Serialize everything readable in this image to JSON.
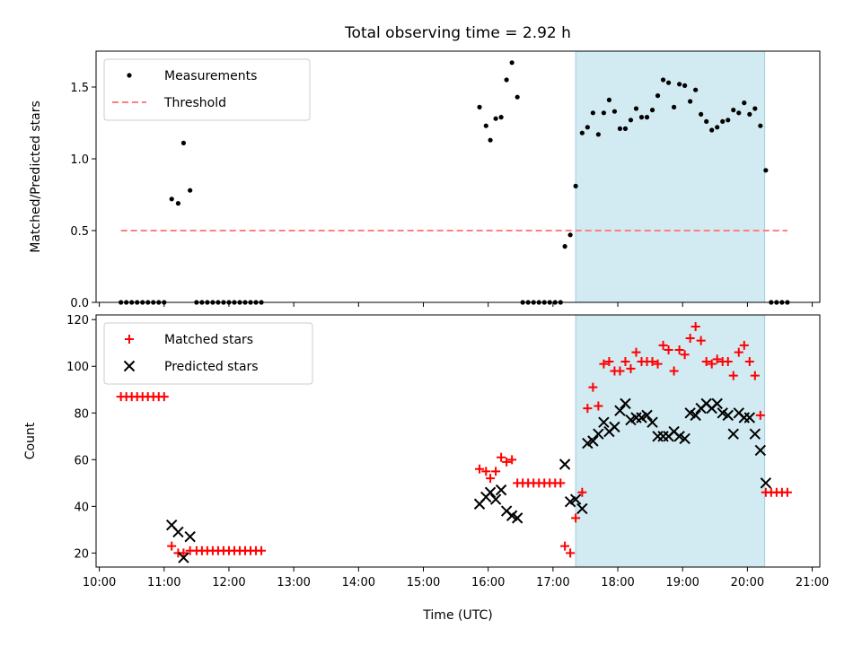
{
  "title": "Total observing time = 2.92 h",
  "chart_data": [
    {
      "type": "scatter",
      "ylabel": "Matched/Predicted stars",
      "xlabel": "",
      "xlim": [
        "09:57",
        "21:07"
      ],
      "ylim": [
        0,
        1.75
      ],
      "yticks": [
        "0.0",
        "0.5",
        "1.0",
        "1.5"
      ],
      "legend": "upper left",
      "highlight_span": {
        "start": "17:21",
        "end": "20:16",
        "color": "#add8e6"
      },
      "series": [
        {
          "name": "Measurements",
          "marker": "dot",
          "color": "#000000",
          "points": [
            [
              "10:20",
              0
            ],
            [
              "10:25",
              0
            ],
            [
              "10:30",
              0
            ],
            [
              "10:35",
              0
            ],
            [
              "10:40",
              0
            ],
            [
              "10:45",
              0
            ],
            [
              "10:50",
              0
            ],
            [
              "10:55",
              0
            ],
            [
              "11:00",
              0
            ],
            [
              "11:07",
              0.72
            ],
            [
              "11:13",
              0.69
            ],
            [
              "11:18",
              1.11
            ],
            [
              "11:24",
              0.78
            ],
            [
              "11:30",
              0
            ],
            [
              "11:35",
              0
            ],
            [
              "11:40",
              0
            ],
            [
              "11:45",
              0
            ],
            [
              "11:50",
              0
            ],
            [
              "11:55",
              0
            ],
            [
              "12:00",
              0
            ],
            [
              "12:05",
              0
            ],
            [
              "12:10",
              0
            ],
            [
              "12:15",
              0
            ],
            [
              "12:20",
              0
            ],
            [
              "12:25",
              0
            ],
            [
              "12:30",
              0
            ],
            [
              "15:52",
              1.36
            ],
            [
              "15:58",
              1.23
            ],
            [
              "16:02",
              1.13
            ],
            [
              "16:07",
              1.28
            ],
            [
              "16:12",
              1.29
            ],
            [
              "16:17",
              1.55
            ],
            [
              "16:22",
              1.67
            ],
            [
              "16:27",
              1.43
            ],
            [
              "16:32",
              0
            ],
            [
              "16:37",
              0
            ],
            [
              "16:42",
              0
            ],
            [
              "16:47",
              0
            ],
            [
              "16:52",
              0
            ],
            [
              "16:57",
              0
            ],
            [
              "17:02",
              0
            ],
            [
              "17:07",
              0
            ],
            [
              "17:11",
              0.39
            ],
            [
              "17:16",
              0.47
            ],
            [
              "17:21",
              0.81
            ],
            [
              "17:27",
              1.18
            ],
            [
              "17:32",
              1.22
            ],
            [
              "17:37",
              1.32
            ],
            [
              "17:42",
              1.17
            ],
            [
              "17:47",
              1.32
            ],
            [
              "17:52",
              1.41
            ],
            [
              "17:57",
              1.33
            ],
            [
              "18:02",
              1.21
            ],
            [
              "18:07",
              1.21
            ],
            [
              "18:12",
              1.27
            ],
            [
              "18:17",
              1.35
            ],
            [
              "18:22",
              1.29
            ],
            [
              "18:27",
              1.29
            ],
            [
              "18:32",
              1.34
            ],
            [
              "18:37",
              1.44
            ],
            [
              "18:42",
              1.55
            ],
            [
              "18:47",
              1.53
            ],
            [
              "18:52",
              1.36
            ],
            [
              "18:57",
              1.52
            ],
            [
              "19:02",
              1.51
            ],
            [
              "19:07",
              1.4
            ],
            [
              "19:12",
              1.48
            ],
            [
              "19:17",
              1.31
            ],
            [
              "19:22",
              1.26
            ],
            [
              "19:27",
              1.2
            ],
            [
              "19:32",
              1.22
            ],
            [
              "19:37",
              1.26
            ],
            [
              "19:42",
              1.27
            ],
            [
              "19:47",
              1.34
            ],
            [
              "19:52",
              1.32
            ],
            [
              "19:57",
              1.39
            ],
            [
              "20:02",
              1.31
            ],
            [
              "20:07",
              1.35
            ],
            [
              "20:12",
              1.23
            ],
            [
              "20:17",
              0.92
            ],
            [
              "20:22",
              0
            ],
            [
              "20:27",
              0
            ],
            [
              "20:32",
              0
            ],
            [
              "20:37",
              0
            ]
          ]
        },
        {
          "name": "Threshold",
          "style": "dashed",
          "color": "#ff7f7f",
          "points": [
            [
              "10:20",
              0.5
            ],
            [
              "20:37",
              0.5
            ]
          ]
        }
      ]
    },
    {
      "type": "scatter",
      "ylabel": "Count",
      "xlabel": "Time (UTC)",
      "xlim": [
        "09:57",
        "21:07"
      ],
      "ylim": [
        14,
        122
      ],
      "yticks": [
        "20",
        "40",
        "60",
        "80",
        "100",
        "120"
      ],
      "xticks": [
        "10:00",
        "11:00",
        "12:00",
        "13:00",
        "14:00",
        "15:00",
        "16:00",
        "17:00",
        "18:00",
        "19:00",
        "20:00",
        "21:00"
      ],
      "legend": "upper left",
      "highlight_span": {
        "start": "17:21",
        "end": "20:16",
        "color": "#add8e6"
      },
      "series": [
        {
          "name": "Matched stars",
          "marker": "plus",
          "color": "#ff0000",
          "points": [
            [
              "10:20",
              87
            ],
            [
              "10:25",
              87
            ],
            [
              "10:30",
              87
            ],
            [
              "10:35",
              87
            ],
            [
              "10:40",
              87
            ],
            [
              "10:45",
              87
            ],
            [
              "10:50",
              87
            ],
            [
              "10:55",
              87
            ],
            [
              "11:00",
              87
            ],
            [
              "11:07",
              23
            ],
            [
              "11:13",
              20
            ],
            [
              "11:18",
              20
            ],
            [
              "11:24",
              21
            ],
            [
              "11:30",
              21
            ],
            [
              "11:35",
              21
            ],
            [
              "11:40",
              21
            ],
            [
              "11:45",
              21
            ],
            [
              "11:50",
              21
            ],
            [
              "11:55",
              21
            ],
            [
              "12:00",
              21
            ],
            [
              "12:05",
              21
            ],
            [
              "12:10",
              21
            ],
            [
              "12:15",
              21
            ],
            [
              "12:20",
              21
            ],
            [
              "12:25",
              21
            ],
            [
              "12:30",
              21
            ],
            [
              "15:52",
              56
            ],
            [
              "15:58",
              55
            ],
            [
              "16:02",
              52
            ],
            [
              "16:07",
              55
            ],
            [
              "16:12",
              61
            ],
            [
              "16:17",
              59
            ],
            [
              "16:22",
              60
            ],
            [
              "16:27",
              50
            ],
            [
              "16:32",
              50
            ],
            [
              "16:37",
              50
            ],
            [
              "16:42",
              50
            ],
            [
              "16:47",
              50
            ],
            [
              "16:52",
              50
            ],
            [
              "16:57",
              50
            ],
            [
              "17:02",
              50
            ],
            [
              "17:07",
              50
            ],
            [
              "17:11",
              23
            ],
            [
              "17:16",
              20
            ],
            [
              "17:21",
              35
            ],
            [
              "17:27",
              46
            ],
            [
              "17:32",
              82
            ],
            [
              "17:37",
              91
            ],
            [
              "17:42",
              83
            ],
            [
              "17:47",
              101
            ],
            [
              "17:52",
              102
            ],
            [
              "17:57",
              98
            ],
            [
              "18:02",
              98
            ],
            [
              "18:07",
              102
            ],
            [
              "18:12",
              99
            ],
            [
              "18:17",
              106
            ],
            [
              "18:22",
              102
            ],
            [
              "18:27",
              102
            ],
            [
              "18:32",
              102
            ],
            [
              "18:37",
              101
            ],
            [
              "18:42",
              109
            ],
            [
              "18:47",
              107
            ],
            [
              "18:52",
              98
            ],
            [
              "18:57",
              107
            ],
            [
              "19:02",
              105
            ],
            [
              "19:07",
              112
            ],
            [
              "19:12",
              117
            ],
            [
              "19:17",
              111
            ],
            [
              "19:22",
              102
            ],
            [
              "19:27",
              101
            ],
            [
              "19:32",
              103
            ],
            [
              "19:37",
              102
            ],
            [
              "19:42",
              102
            ],
            [
              "19:47",
              96
            ],
            [
              "19:52",
              106
            ],
            [
              "19:57",
              109
            ],
            [
              "20:02",
              102
            ],
            [
              "20:07",
              96
            ],
            [
              "20:12",
              79
            ],
            [
              "20:17",
              46
            ],
            [
              "20:22",
              46
            ],
            [
              "20:27",
              46
            ],
            [
              "20:32",
              46
            ],
            [
              "20:37",
              46
            ]
          ]
        },
        {
          "name": "Predicted stars",
          "marker": "x",
          "color": "#000000",
          "points": [
            [
              "11:07",
              32
            ],
            [
              "11:13",
              29
            ],
            [
              "11:18",
              18
            ],
            [
              "11:24",
              27
            ],
            [
              "15:52",
              41
            ],
            [
              "15:58",
              44
            ],
            [
              "16:02",
              46
            ],
            [
              "16:07",
              43
            ],
            [
              "16:12",
              47
            ],
            [
              "16:17",
              38
            ],
            [
              "16:22",
              36
            ],
            [
              "16:27",
              35
            ],
            [
              "17:11",
              58
            ],
            [
              "17:16",
              42
            ],
            [
              "17:21",
              43
            ],
            [
              "17:27",
              39
            ],
            [
              "17:32",
              67
            ],
            [
              "17:37",
              68
            ],
            [
              "17:42",
              71
            ],
            [
              "17:47",
              76
            ],
            [
              "17:52",
              72
            ],
            [
              "17:57",
              74
            ],
            [
              "18:02",
              81
            ],
            [
              "18:07",
              84
            ],
            [
              "18:12",
              77
            ],
            [
              "18:17",
              78
            ],
            [
              "18:22",
              78
            ],
            [
              "18:27",
              79
            ],
            [
              "18:32",
              76
            ],
            [
              "18:37",
              70
            ],
            [
              "18:42",
              70
            ],
            [
              "18:47",
              70
            ],
            [
              "18:52",
              72
            ],
            [
              "18:57",
              70
            ],
            [
              "19:02",
              69
            ],
            [
              "19:07",
              80
            ],
            [
              "19:12",
              79
            ],
            [
              "19:17",
              82
            ],
            [
              "19:22",
              84
            ],
            [
              "19:27",
              82
            ],
            [
              "19:32",
              84
            ],
            [
              "19:37",
              80
            ],
            [
              "19:42",
              79
            ],
            [
              "19:47",
              71
            ],
            [
              "19:52",
              80
            ],
            [
              "19:57",
              78
            ],
            [
              "20:02",
              78
            ],
            [
              "20:07",
              71
            ],
            [
              "20:12",
              64
            ],
            [
              "20:17",
              50
            ]
          ]
        }
      ]
    }
  ]
}
